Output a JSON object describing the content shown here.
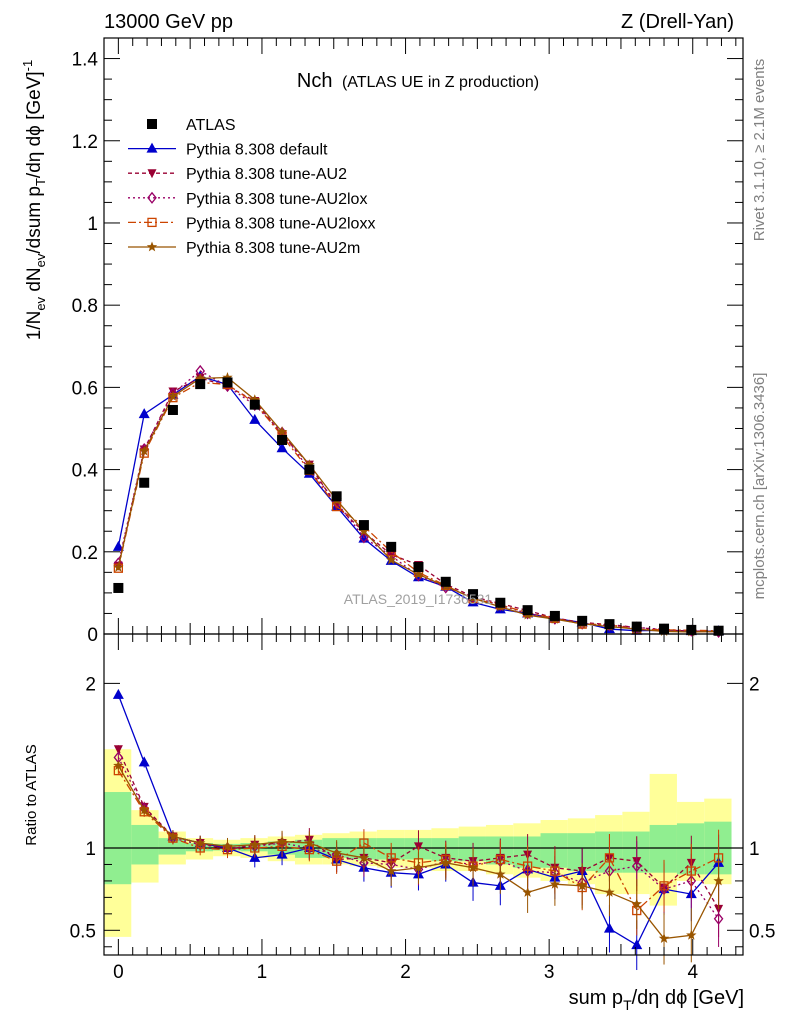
{
  "header": {
    "left": "13000 GeV pp",
    "right": "Z (Drell-Yan)"
  },
  "plot_title": {
    "main": "Nch",
    "sub": "(ATLAS UE in Z production)"
  },
  "side_labels": {
    "right_top": "Rivet 3.1.10, ≥ 2.1M events",
    "right_bottom": "mcplots.cern.ch [arXiv:1306.3436]"
  },
  "watermark": "ATLAS_2019_I1736531",
  "chart_data": [
    {
      "type": "line",
      "panel": "main",
      "ylabel": "1/N_ev dN_ev/dsum p_T/dη dϕ [GeV]^-1",
      "ylim": [
        0,
        1.45
      ],
      "y_ticks": [
        "0",
        "0.2",
        "0.4",
        "0.6",
        "0.8",
        "1",
        "1.2",
        "1.4"
      ],
      "x": [
        0.0,
        0.18,
        0.38,
        0.57,
        0.76,
        0.95,
        1.14,
        1.33,
        1.52,
        1.71,
        1.9,
        2.09,
        2.28,
        2.47,
        2.66,
        2.85,
        3.04,
        3.23,
        3.42,
        3.61,
        3.8,
        3.99,
        4.18
      ],
      "series": [
        {
          "name": "ATLAS",
          "style": "data",
          "color": "#000000",
          "marker": "square",
          "values": [
            0.112,
            0.368,
            0.545,
            0.608,
            0.612,
            0.558,
            0.472,
            0.4,
            0.335,
            0.265,
            0.212,
            0.163,
            0.127,
            0.097,
            0.076,
            0.058,
            0.044,
            0.032,
            0.024,
            0.018,
            0.013,
            0.01,
            0.008
          ]
        },
        {
          "name": "Pythia 8.308 default",
          "color": "#0000cc",
          "marker": "triangle-up",
          "dash": "",
          "values": [
            0.212,
            0.535,
            0.582,
            0.627,
            0.607,
            0.521,
            0.452,
            0.39,
            0.31,
            0.232,
            0.178,
            0.138,
            0.115,
            0.077,
            0.06,
            0.05,
            0.038,
            0.028,
            0.012,
            0.008,
            0.009,
            0.007,
            0.007
          ]
        },
        {
          "name": "Pythia 8.308 tune-AU2",
          "color": "#990033",
          "marker": "triangle-down",
          "dash": "4,3",
          "values": [
            0.166,
            0.449,
            0.59,
            0.623,
            0.603,
            0.567,
            0.485,
            0.412,
            0.312,
            0.248,
            0.193,
            0.168,
            0.121,
            0.091,
            0.074,
            0.057,
            0.039,
            0.028,
            0.023,
            0.016,
            0.01,
            0.007,
            0.005
          ]
        },
        {
          "name": "Pythia 8.308 tune-AU2lox",
          "color": "#990066",
          "marker": "diamond-open",
          "dash": "2,3",
          "values": [
            0.172,
            0.45,
            0.585,
            0.64,
            0.603,
            0.557,
            0.49,
            0.4,
            0.32,
            0.235,
            0.19,
            0.142,
            0.113,
            0.09,
            0.07,
            0.05,
            0.037,
            0.025,
            0.021,
            0.016,
            0.011,
            0.008,
            0.005
          ]
        },
        {
          "name": "Pythia 8.308 tune-AU2loxx",
          "color": "#cc4400",
          "marker": "square-open",
          "dash": "8,3,2,3",
          "values": [
            0.16,
            0.44,
            0.575,
            0.612,
            0.607,
            0.562,
            0.482,
            0.398,
            0.31,
            0.262,
            0.2,
            0.15,
            0.118,
            0.086,
            0.071,
            0.052,
            0.038,
            0.024,
            0.023,
            0.011,
            0.01,
            0.009,
            0.008
          ]
        },
        {
          "name": "Pythia 8.308 tune-AU2m",
          "color": "#995500",
          "marker": "star",
          "dash": "",
          "values": [
            0.162,
            0.445,
            0.578,
            0.622,
            0.624,
            0.57,
            0.492,
            0.412,
            0.326,
            0.25,
            0.18,
            0.145,
            0.116,
            0.087,
            0.066,
            0.046,
            0.036,
            0.025,
            0.018,
            0.012,
            0.006,
            0.005,
            0.006
          ]
        }
      ],
      "legend_position": "top-left"
    },
    {
      "type": "line",
      "panel": "ratio",
      "ylabel": "Ratio to ATLAS",
      "xlabel": "sum p_T/dη dϕ [GeV]",
      "xlim": [
        -0.1,
        4.35
      ],
      "x_ticks": [
        "0",
        "1",
        "2",
        "3",
        "4"
      ],
      "ylim": [
        0.35,
        2.3
      ],
      "y_ticks": [
        "0.5",
        "1",
        "2"
      ],
      "band_edges": [
        -0.1,
        0.09,
        0.28,
        0.47,
        0.66,
        0.85,
        1.04,
        1.23,
        1.42,
        1.61,
        1.8,
        1.99,
        2.18,
        2.37,
        2.56,
        2.75,
        2.94,
        3.13,
        3.32,
        3.51,
        3.7,
        3.89,
        4.08,
        4.27
      ],
      "band_stat": [
        [
          0.78,
          1.34
        ],
        [
          0.9,
          1.14
        ],
        [
          0.96,
          1.06
        ],
        [
          0.98,
          1.03
        ],
        [
          0.985,
          1.025
        ],
        [
          0.98,
          1.03
        ],
        [
          0.96,
          1.04
        ],
        [
          0.94,
          1.05
        ],
        [
          0.94,
          1.06
        ],
        [
          0.93,
          1.06
        ],
        [
          0.93,
          1.06
        ],
        [
          0.93,
          1.06
        ],
        [
          0.92,
          1.06
        ],
        [
          0.92,
          1.07
        ],
        [
          0.9,
          1.07
        ],
        [
          0.88,
          1.07
        ],
        [
          0.88,
          1.09
        ],
        [
          0.86,
          1.09
        ],
        [
          0.85,
          1.1
        ],
        [
          0.85,
          1.1
        ],
        [
          0.85,
          1.14
        ],
        [
          0.84,
          1.15
        ],
        [
          0.84,
          1.16
        ]
      ],
      "band_total": [
        [
          0.46,
          1.6
        ],
        [
          0.79,
          1.23
        ],
        [
          0.9,
          1.1
        ],
        [
          0.93,
          1.06
        ],
        [
          0.95,
          1.05
        ],
        [
          0.94,
          1.06
        ],
        [
          0.92,
          1.07
        ],
        [
          0.9,
          1.08
        ],
        [
          0.9,
          1.09
        ],
        [
          0.89,
          1.1
        ],
        [
          0.88,
          1.11
        ],
        [
          0.88,
          1.11
        ],
        [
          0.86,
          1.12
        ],
        [
          0.86,
          1.13
        ],
        [
          0.84,
          1.14
        ],
        [
          0.82,
          1.15
        ],
        [
          0.8,
          1.17
        ],
        [
          0.78,
          1.18
        ],
        [
          0.72,
          1.2
        ],
        [
          0.72,
          1.22
        ],
        [
          0.65,
          1.45
        ],
        [
          0.8,
          1.28
        ],
        [
          0.78,
          1.3
        ]
      ],
      "x": [
        0.0,
        0.18,
        0.38,
        0.57,
        0.76,
        0.95,
        1.14,
        1.33,
        1.52,
        1.71,
        1.9,
        2.09,
        2.28,
        2.47,
        2.66,
        2.85,
        3.04,
        3.23,
        3.42,
        3.61,
        3.8,
        3.99,
        4.18
      ],
      "series": [
        {
          "name": "Pythia 8.308 default",
          "color": "#0000cc",
          "marker": "triangle-up",
          "dash": "",
          "values": [
            1.93,
            1.52,
            1.07,
            1.03,
            1.0,
            0.94,
            0.96,
            1.0,
            0.93,
            0.88,
            0.85,
            0.84,
            0.9,
            0.79,
            0.77,
            0.87,
            0.82,
            0.86,
            0.51,
            0.41,
            0.75,
            0.72,
            0.91
          ]
        },
        {
          "name": "Pythia 8.308 tune-AU2",
          "color": "#990033",
          "marker": "triangle-down",
          "dash": "4,3",
          "values": [
            1.6,
            1.25,
            1.07,
            1.03,
            0.99,
            1.02,
            1.03,
            1.05,
            0.93,
            0.94,
            0.91,
            1.01,
            0.94,
            0.92,
            0.94,
            0.96,
            0.88,
            0.86,
            0.94,
            0.92,
            0.76,
            0.91,
            0.63
          ]
        },
        {
          "name": "Pythia 8.308 tune-AU2lox",
          "color": "#990066",
          "marker": "diamond-open",
          "dash": "2,3",
          "values": [
            1.55,
            1.24,
            1.06,
            1.02,
            1.0,
            1.01,
            1.03,
            1.0,
            0.96,
            0.91,
            0.9,
            0.87,
            0.92,
            0.9,
            0.92,
            0.86,
            0.85,
            0.79,
            0.86,
            0.89,
            0.75,
            0.8,
            0.57
          ]
        },
        {
          "name": "Pythia 8.308 tune-AU2loxx",
          "color": "#cc4400",
          "marker": "square-open",
          "dash": "8,3,2,3",
          "values": [
            1.47,
            1.22,
            1.06,
            1.0,
            0.99,
            1.0,
            1.01,
            0.99,
            0.92,
            1.03,
            0.94,
            0.91,
            0.93,
            0.89,
            0.93,
            0.89,
            0.86,
            0.76,
            0.94,
            0.62,
            0.77,
            0.86,
            0.94
          ]
        },
        {
          "name": "Pythia 8.308 tune-AU2m",
          "color": "#995500",
          "marker": "star",
          "dash": "",
          "values": [
            1.5,
            1.23,
            1.07,
            1.03,
            1.01,
            1.02,
            1.04,
            1.03,
            0.97,
            0.94,
            0.86,
            0.88,
            0.91,
            0.88,
            0.84,
            0.73,
            0.78,
            0.77,
            0.73,
            0.66,
            0.45,
            0.47,
            0.8
          ]
        }
      ]
    }
  ],
  "colors": {
    "band_stat": "#90ee90",
    "band_total": "#ffff99",
    "axis": "#000000",
    "side_text": "#808080"
  }
}
